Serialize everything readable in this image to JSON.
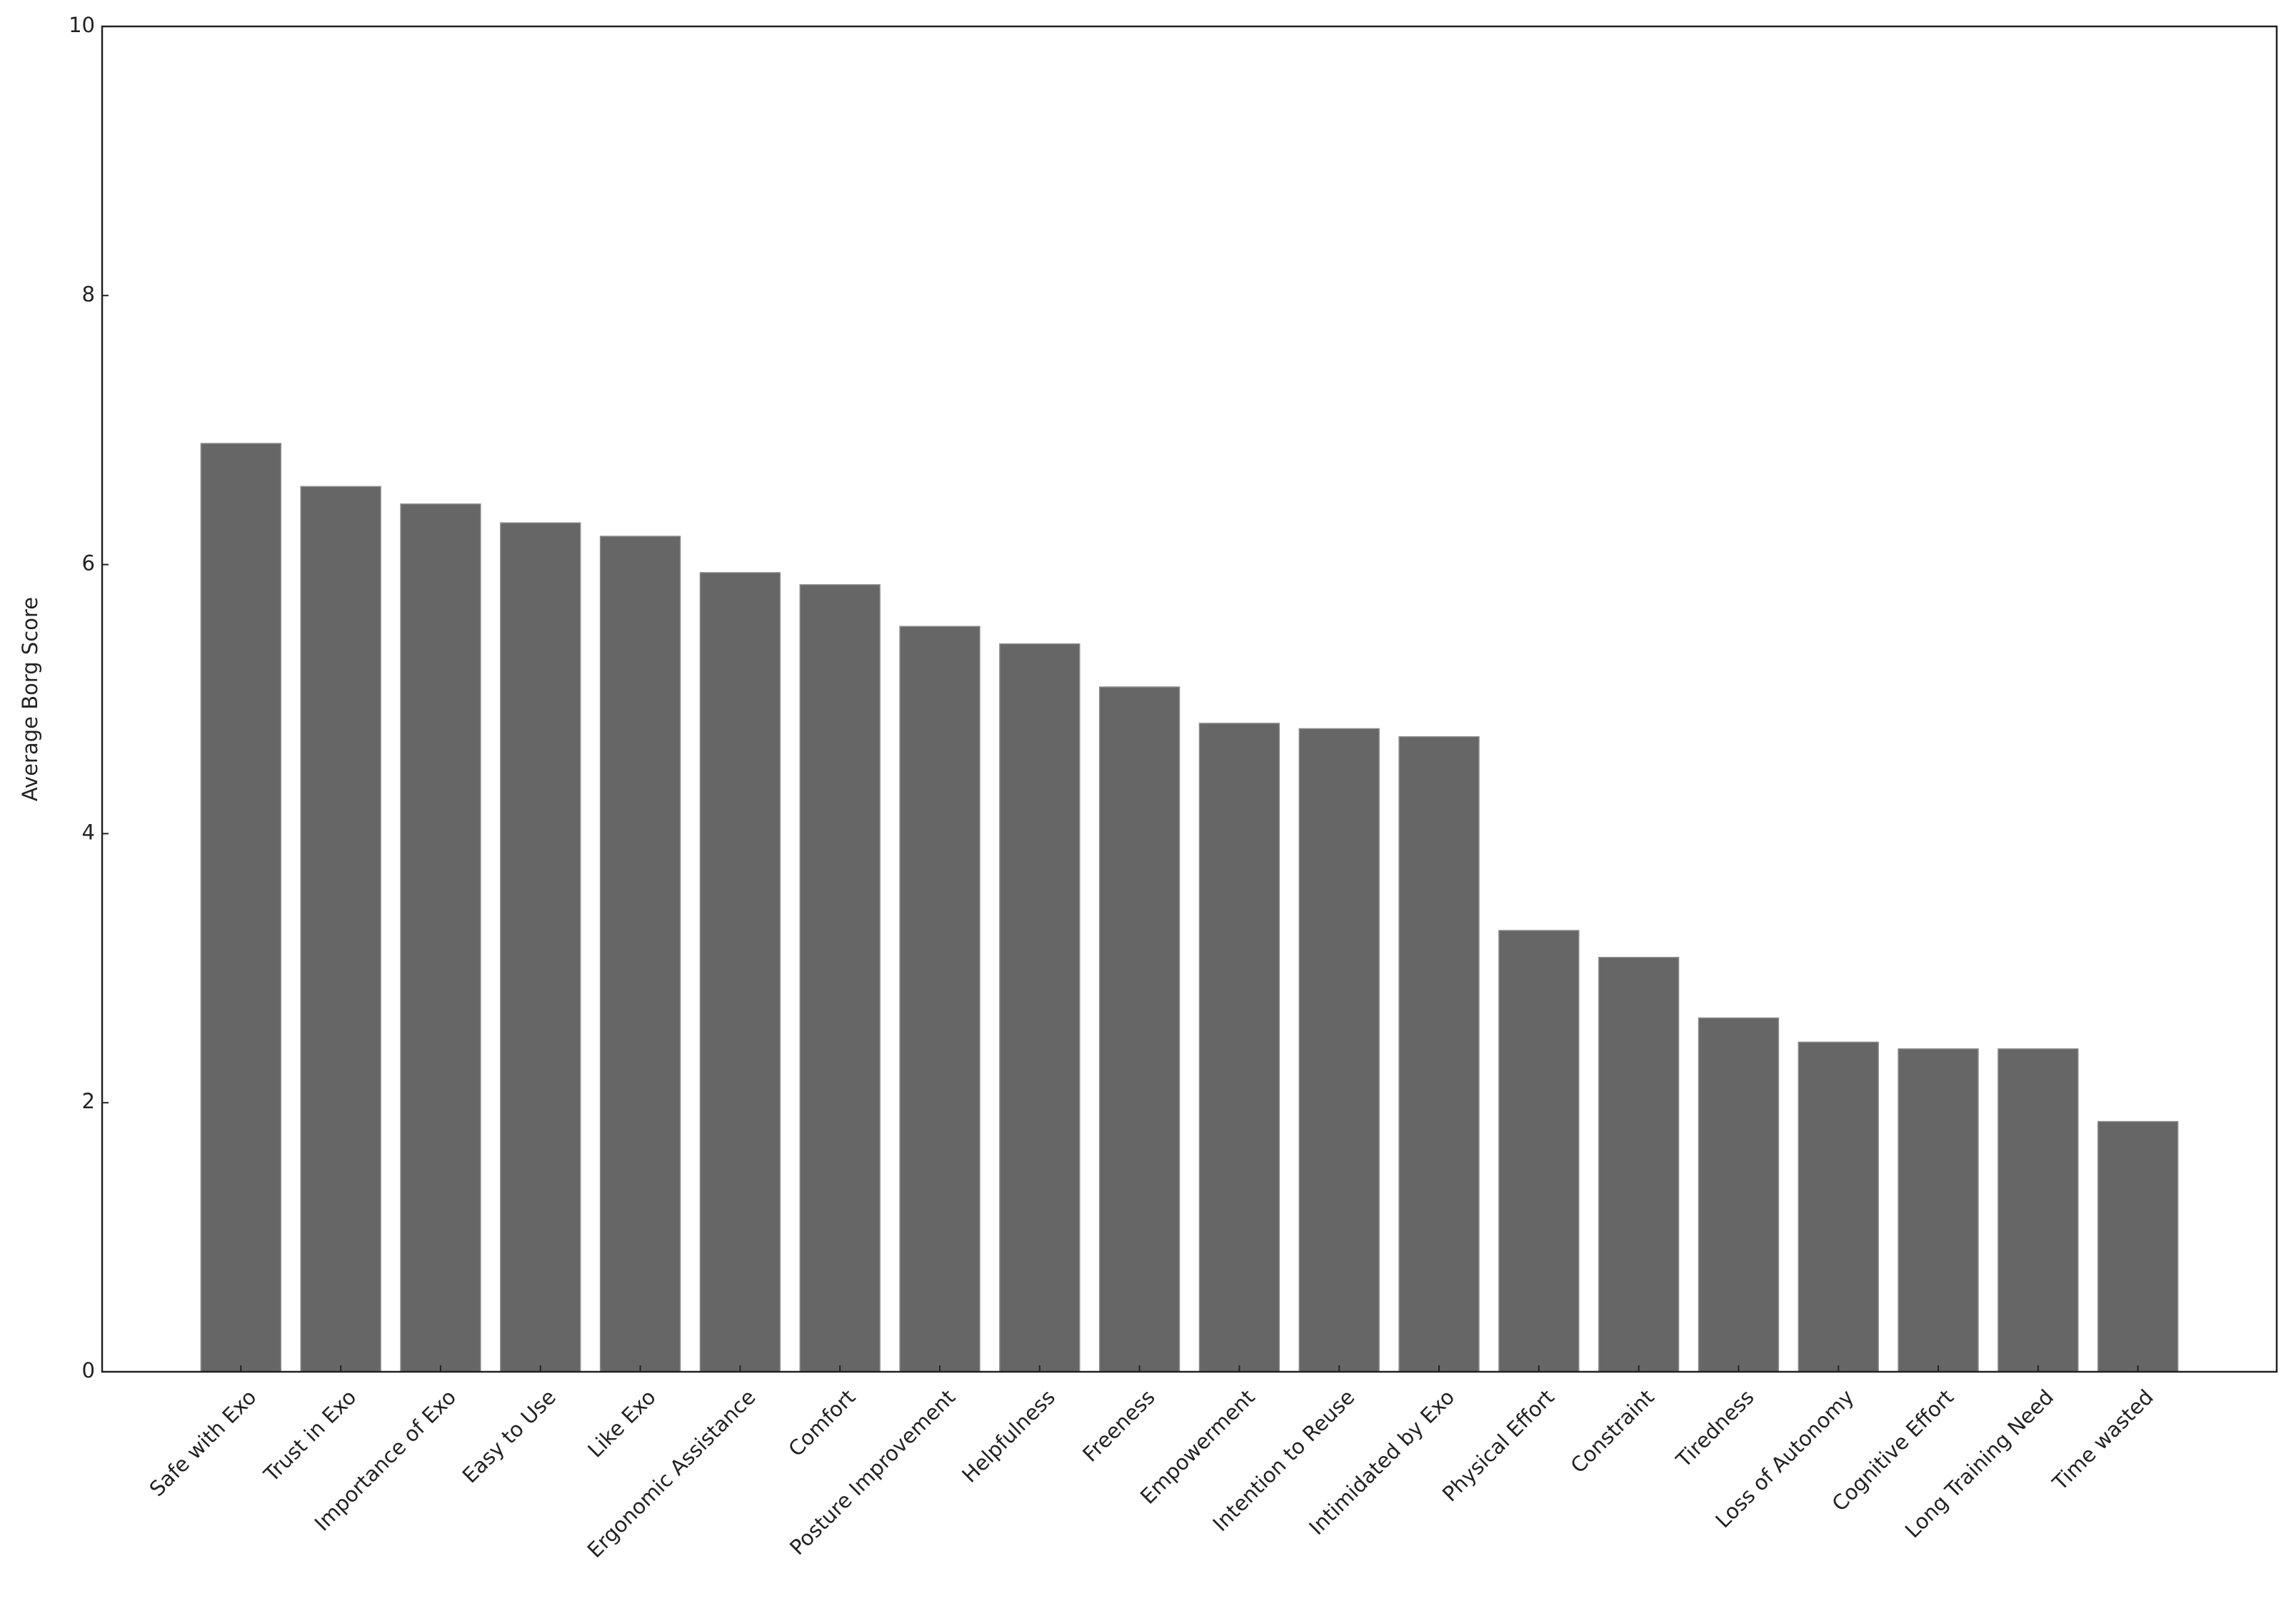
{
  "chart_data": {
    "type": "bar",
    "ylabel": "Average Borg Score",
    "categories": [
      "Safe with Exo",
      "Trust in Exo",
      "Importance of Exo",
      "Easy to Use",
      "Like Exo",
      "Ergonomic Assistance",
      "Comfort",
      "Posture Improvement",
      "Helpfulness",
      "Freeness",
      "Empowerment",
      "Intention to Reuse",
      "Intimidated by Exo",
      "Physical Effort",
      "Constraint",
      "Tiredness",
      "Loss of Autonomy",
      "Cognitive Effort",
      "Long Training Need",
      "Time wasted"
    ],
    "values": [
      6.9,
      6.58,
      6.45,
      6.31,
      6.21,
      5.94,
      5.85,
      5.54,
      5.41,
      5.09,
      4.82,
      4.78,
      4.72,
      3.28,
      3.08,
      2.63,
      2.45,
      2.4,
      2.4,
      1.86
    ],
    "color": "#666666",
    "ylim": [
      0,
      10
    ],
    "yticks": [
      0,
      2,
      4,
      6,
      8,
      10
    ]
  }
}
